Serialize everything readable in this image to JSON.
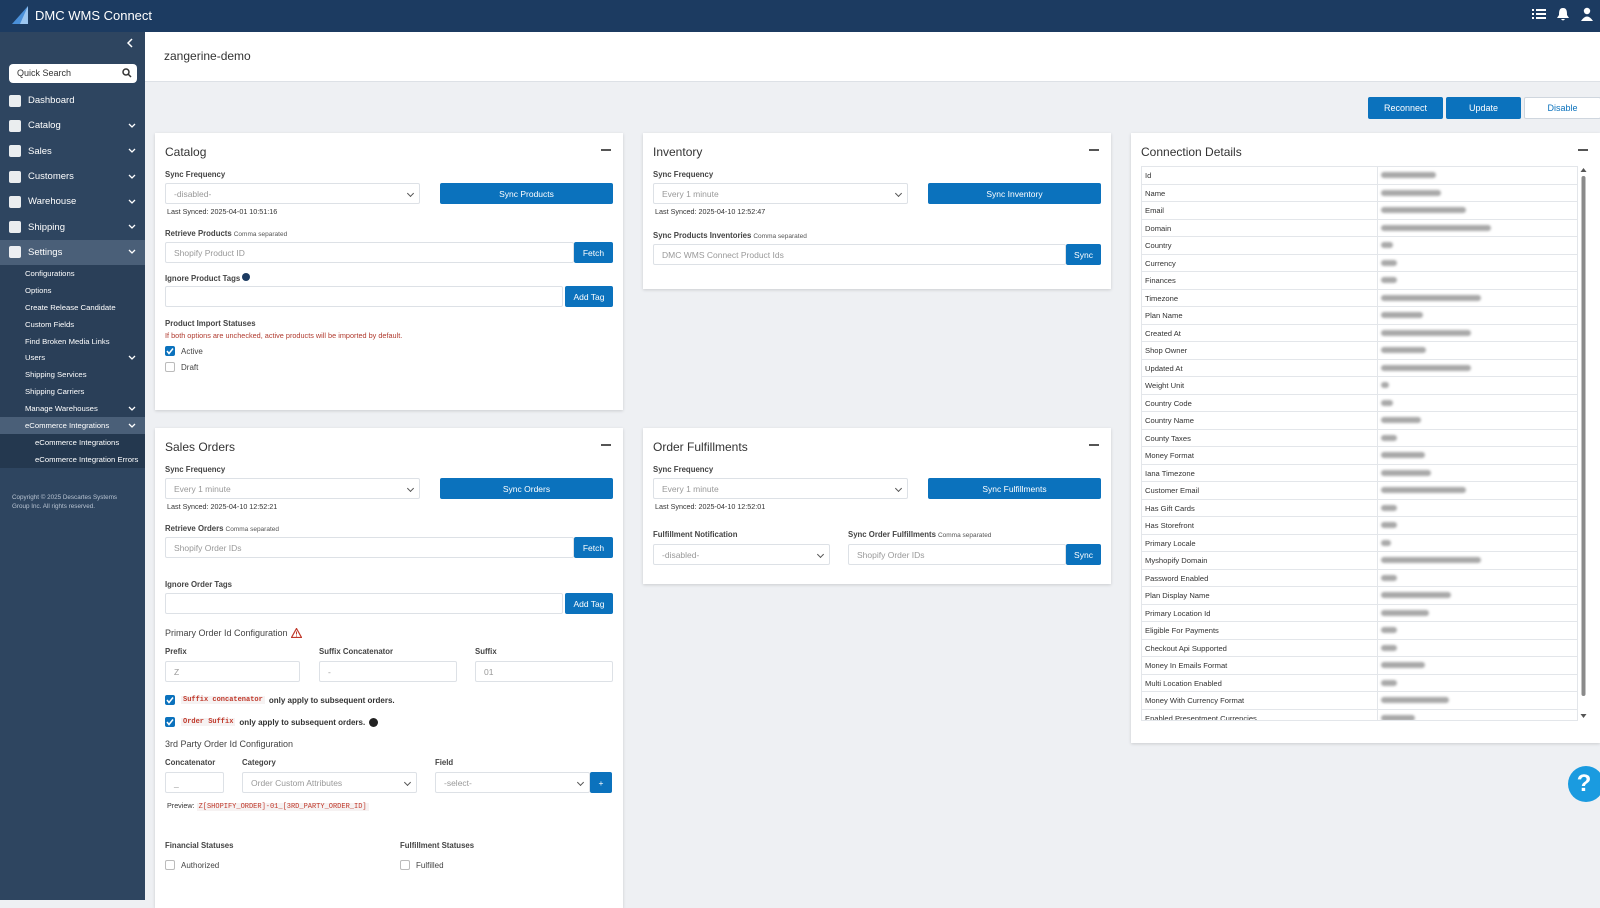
{
  "app": {
    "title": "DMC WMS Connect",
    "help": "?"
  },
  "sidebar": {
    "search_placeholder": "Quick Search",
    "nav": [
      "Dashboard",
      "Catalog",
      "Sales",
      "Customers",
      "Warehouse",
      "Shipping",
      "Settings"
    ],
    "settings_items": [
      "Configurations",
      "Options",
      "Create Release Candidate",
      "Custom Fields",
      "Find Broken Media Links",
      "Users",
      "Shipping Services",
      "Shipping Carriers",
      "Manage Warehouses",
      "eCommerce Integrations"
    ],
    "ecommerce_items": [
      "eCommerce Integrations",
      "eCommerce Integration Errors"
    ],
    "copyright": "Copyright © 2025 Descartes Systems Group Inc. All rights reserved."
  },
  "header": {
    "store": "zangerine-demo"
  },
  "actions": [
    "Reconnect",
    "Update",
    "Disable"
  ],
  "catalog": {
    "title": "Catalog",
    "sync_frequency_label": "Sync Frequency",
    "sync_frequency": "-disabled-",
    "button": "Sync Products",
    "last_synced": "Last Synced: 2025-04-01 10:51:16",
    "retrieve_label": "Retrieve Products",
    "retrieve_hint": "Comma separated",
    "retrieve_placeholder": "Shopify Product ID",
    "fetch": "Fetch",
    "ignore_label": "Ignore Product Tags",
    "add_tag": "Add Tag",
    "statuses_label": "Product Import Statuses",
    "statuses_note": "If both options are unchecked, active products will be imported by default.",
    "statuses": [
      {
        "label": "Active",
        "checked": true
      },
      {
        "label": "Draft",
        "checked": false
      }
    ]
  },
  "inventory": {
    "title": "Inventory",
    "sync_frequency_label": "Sync Frequency",
    "sync_frequency": "Every 1 minute",
    "button": "Sync Inventory",
    "last_synced": "Last Synced: 2025-04-10 12:52:47",
    "retrieve_label": "Sync Products Inventories",
    "retrieve_hint": "Comma separated",
    "retrieve_placeholder": "DMC WMS Connect Product Ids",
    "sync": "Sync"
  },
  "sales_orders": {
    "title": "Sales Orders",
    "sync_frequency_label": "Sync Frequency",
    "sync_frequency": "Every 1 minute",
    "button": "Sync Orders",
    "last_synced": "Last Synced: 2025-04-10 12:52:21",
    "retrieve_label": "Retrieve Orders",
    "retrieve_hint": "Comma separated",
    "retrieve_placeholder": "Shopify Order IDs",
    "fetch": "Fetch",
    "ignore_label": "Ignore Order Tags",
    "add_tag": "Add Tag",
    "primary_title": "Primary Order Id Configuration",
    "prefix_label": "Prefix",
    "prefix": "Z",
    "suffix_concat_label": "Suffix Concatenator",
    "suffix_concat": "-",
    "suffix_label": "Suffix",
    "suffix": "01",
    "notes": [
      {
        "code": "Suffix concatenator",
        "text": "only apply to subsequent orders.",
        "checked": true
      },
      {
        "code": "Order Suffix",
        "text": "only apply to subsequent orders.",
        "checked": true
      }
    ],
    "third_party_title": "3rd Party Order Id Configuration",
    "concatenator_label": "Concatenator",
    "concatenator": "_",
    "category_label": "Category",
    "category": "Order Custom Attributes",
    "field_label": "Field",
    "field": "-select-",
    "add": "+",
    "preview_label": "Preview:",
    "preview": "Z[SHOPIFY_ORDER]-01_[3RD_PARTY_ORDER_ID]",
    "financial_label": "Financial Statuses",
    "financial": [
      {
        "label": "Authorized",
        "checked": false
      }
    ],
    "fulfillment_label": "Fulfillment Statuses",
    "fulfillment": [
      {
        "label": "Fulfilled",
        "checked": false
      }
    ]
  },
  "order_fulfillments": {
    "title": "Order Fulfillments",
    "sync_frequency_label": "Sync Frequency",
    "sync_frequency": "Every 1 minute",
    "button": "Sync Fulfillments",
    "last_synced": "Last Synced: 2025-04-10 12:52:01",
    "notification_label": "Fulfillment Notification",
    "notification": "-disabled-",
    "sync_ids_label": "Sync Order Fulfillments",
    "sync_ids_hint": "Comma separated",
    "sync_ids_placeholder": "Shopify Order IDs",
    "sync": "Sync"
  },
  "connection": {
    "title": "Connection Details",
    "fields": [
      "Id",
      "Name",
      "Email",
      "Domain",
      "Country",
      "Currency",
      "Finances",
      "Timezone",
      "Plan Name",
      "Created At",
      "Shop Owner",
      "Updated At",
      "Weight Unit",
      "Country Code",
      "Country Name",
      "County Taxes",
      "Money Format",
      "Iana Timezone",
      "Customer Email",
      "Has Gift Cards",
      "Has Storefront",
      "Primary Locale",
      "Myshopify Domain",
      "Password Enabled",
      "Plan Display Name",
      "Primary Location Id",
      "Eligible For Payments",
      "Checkout Api Supported",
      "Money In Emails Format",
      "Multi Location Enabled",
      "Money With Currency Format",
      "Enabled Presentment Currencies"
    ]
  }
}
